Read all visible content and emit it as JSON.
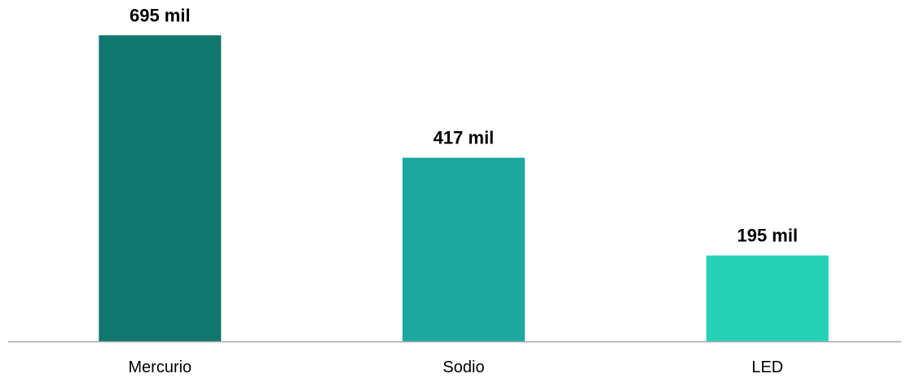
{
  "chart_data": {
    "type": "bar",
    "categories": [
      "Mercurio",
      "Sodio",
      "LED"
    ],
    "values": [
      695,
      417,
      195
    ],
    "data_labels": [
      "695 mil",
      "417 mil",
      "195 mil"
    ],
    "colors": [
      "#10766e",
      "#1aa89f",
      "#26d2b6"
    ],
    "axis_color": "#a6a6a6",
    "ylim": [
      0,
      740
    ],
    "grid": false,
    "legend": "none"
  }
}
